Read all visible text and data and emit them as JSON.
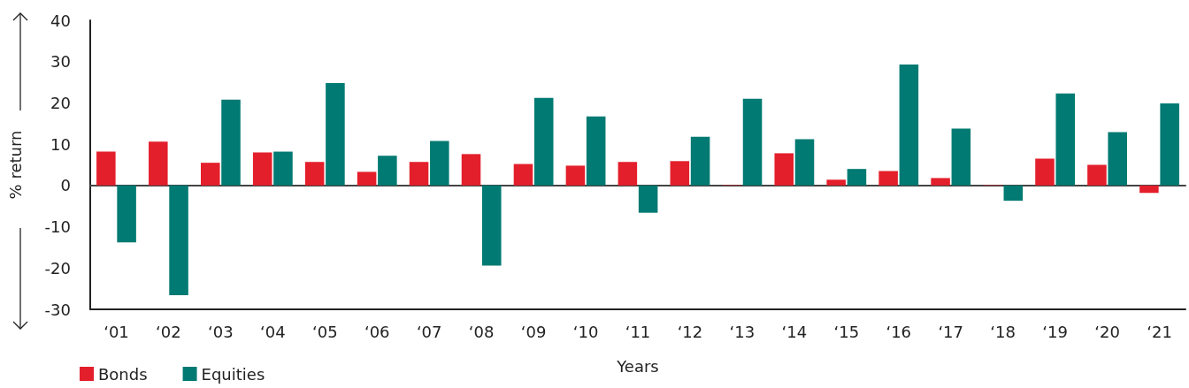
{
  "chart_data": {
    "type": "bar",
    "xlabel": "Years",
    "ylabel": "% return",
    "categories": [
      "‘01",
      "‘02",
      "‘03",
      "‘04",
      "‘05",
      "‘06",
      "‘07",
      "‘08",
      "‘09",
      "‘10",
      "‘11",
      "‘12",
      "‘13",
      "‘14",
      "‘15",
      "‘16",
      "‘17",
      "‘18",
      "‘19",
      "‘20",
      "‘21"
    ],
    "series": [
      {
        "name": "Bonds",
        "color": "#e31f2b",
        "values": [
          8.2,
          10.6,
          5.5,
          8.0,
          5.7,
          3.3,
          5.7,
          7.6,
          5.2,
          4.8,
          5.7,
          5.9,
          0.1,
          7.8,
          1.4,
          3.5,
          1.8,
          0.1,
          6.5,
          5.0,
          -1.8
        ]
      },
      {
        "name": "Equities",
        "color": "#007a72",
        "values": [
          -13.8,
          -26.6,
          20.8,
          8.2,
          24.8,
          7.2,
          10.8,
          -19.4,
          21.2,
          16.7,
          -6.6,
          11.8,
          21.0,
          11.2,
          4.0,
          29.3,
          13.8,
          -3.7,
          22.3,
          12.9,
          19.9
        ]
      }
    ],
    "ylim": [
      -30,
      40
    ],
    "yticks": [
      -30,
      -20,
      -10,
      0,
      10,
      20,
      30,
      40
    ],
    "legend": "bottom left"
  }
}
